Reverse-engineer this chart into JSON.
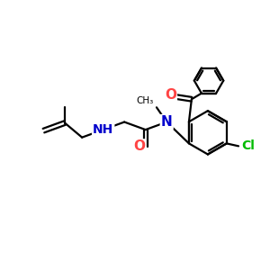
{
  "background_color": "#ffffff",
  "atom_colors": {
    "C": "#000000",
    "N": "#0000cc",
    "O": "#ff4444",
    "Cl": "#00bb00",
    "H": "#000000"
  },
  "bond_color": "#000000",
  "bond_width": 1.6,
  "figsize": [
    3.0,
    3.0
  ],
  "dpi": 100,
  "xlim": [
    0,
    10
  ],
  "ylim": [
    0,
    10
  ]
}
